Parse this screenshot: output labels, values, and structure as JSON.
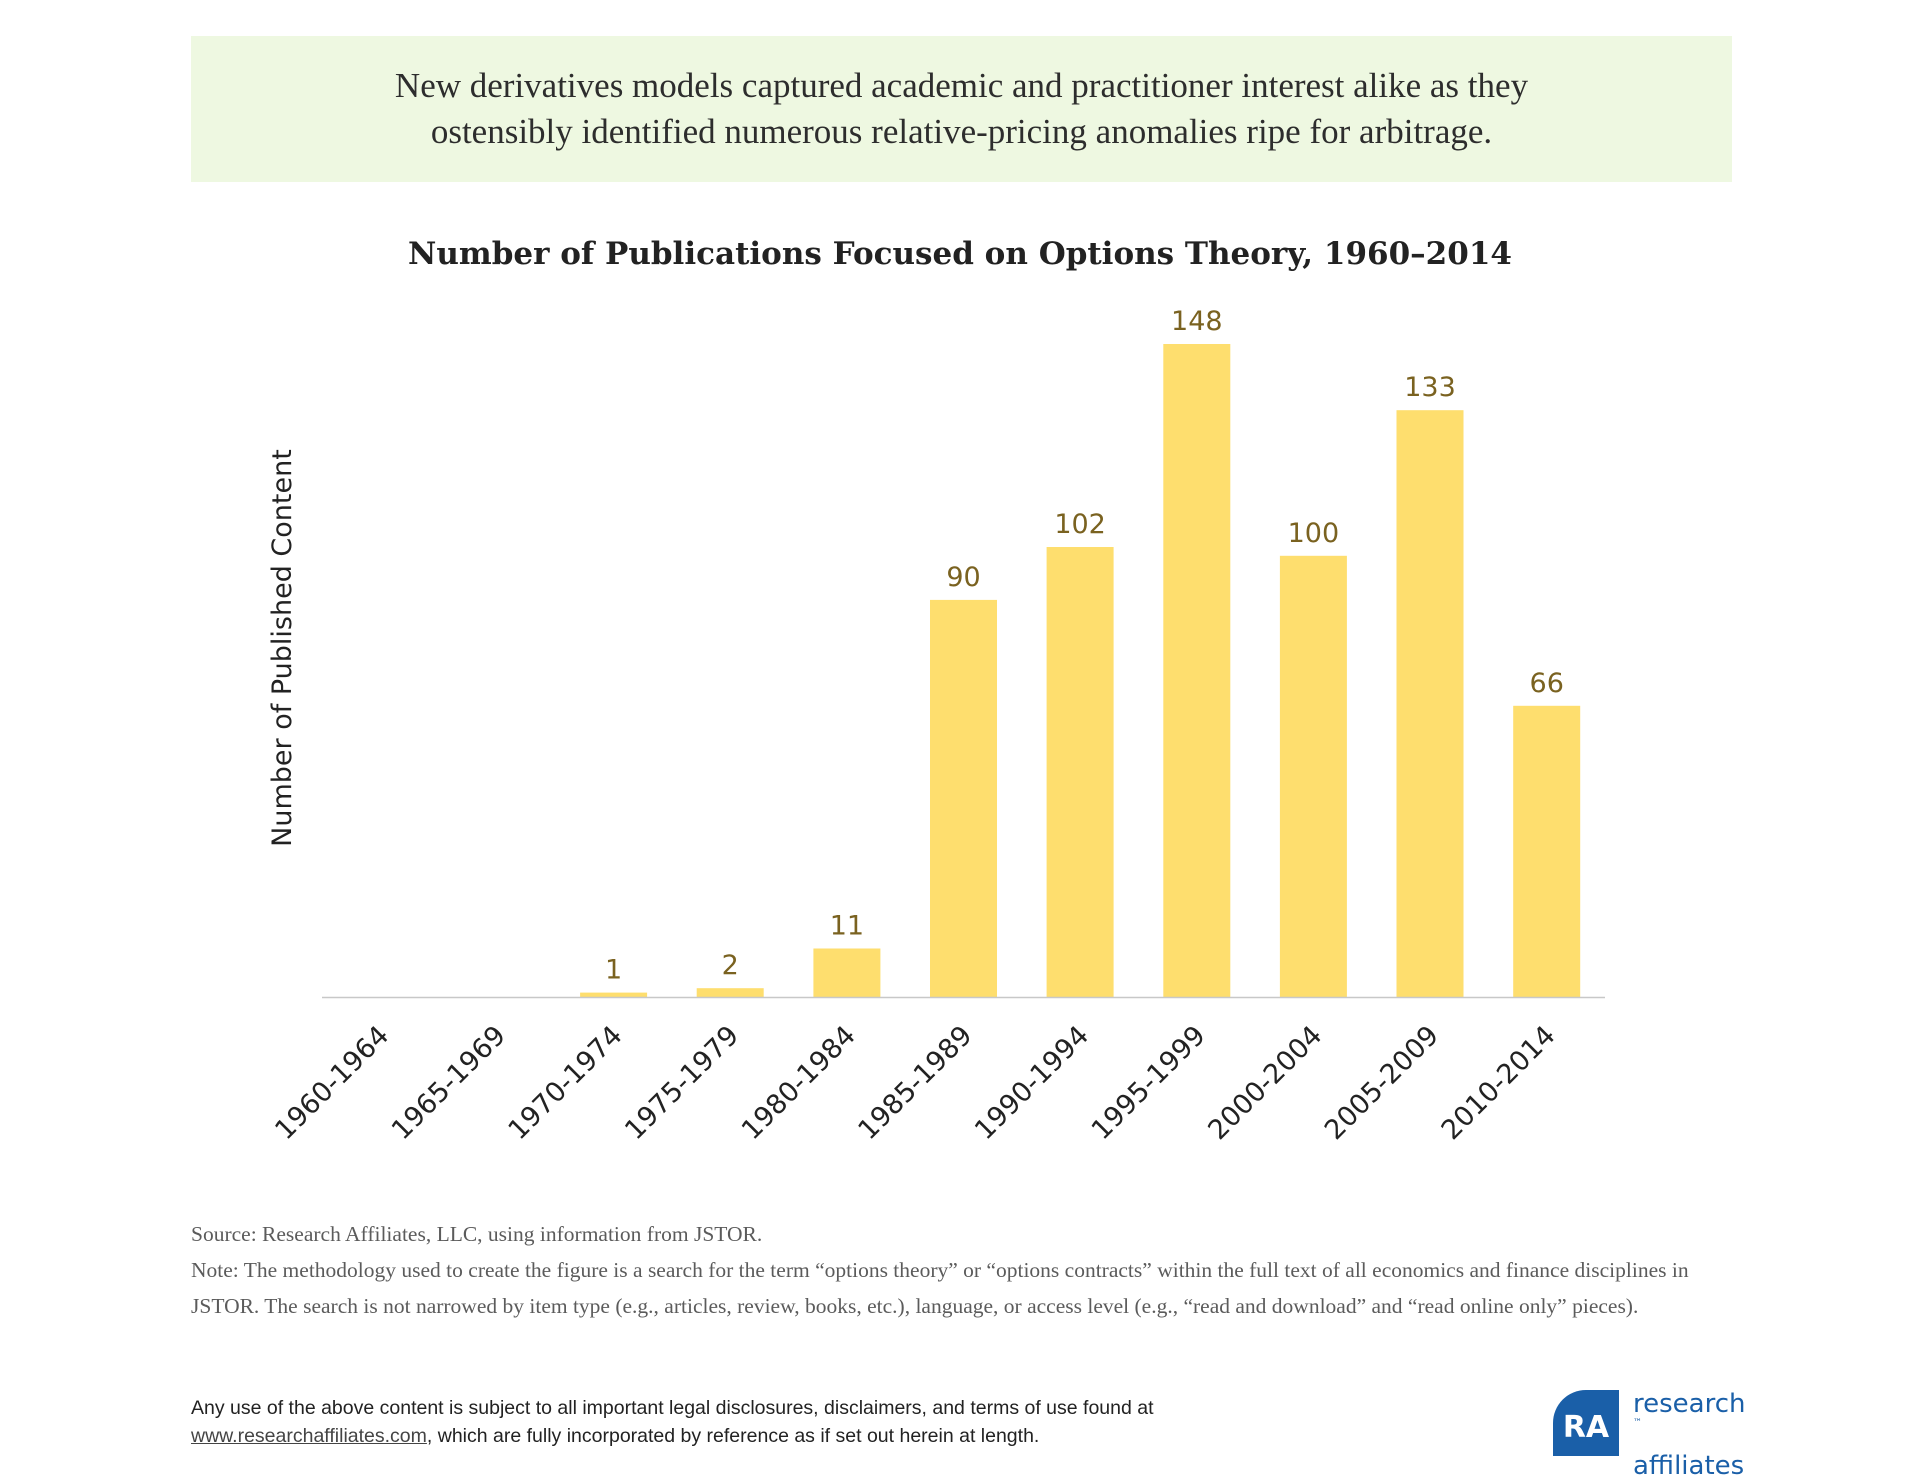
{
  "banner": {
    "line1": "New derivatives models captured academic and practitioner interest alike as they",
    "line2": "ostensibly identified numerous relative-pricing anomalies ripe for arbitrage."
  },
  "chart_data": {
    "type": "bar",
    "title": "Number of Publications Focused on Options Theory, 1960–2014",
    "xlabel": "",
    "ylabel": "Number of Published Content",
    "categories": [
      "1960-1964",
      "1965-1969",
      "1970-1974",
      "1975-1979",
      "1980-1984",
      "1985-1989",
      "1990-1994",
      "1995-1999",
      "2000-2004",
      "2005-2009",
      "2010-2014"
    ],
    "values": [
      0,
      0,
      1,
      2,
      11,
      90,
      102,
      148,
      100,
      133,
      66
    ],
    "labels": [
      "",
      "",
      "1",
      "2",
      "11",
      "90",
      "102",
      "148",
      "100",
      "133",
      "66"
    ],
    "ylim": [
      0,
      148
    ],
    "grid": false,
    "colors": {
      "bar": "#fede6e",
      "label": "#7a6220",
      "axis": "#c8c8c8"
    }
  },
  "footer": {
    "source": "Source: Research Affiliates, LLC, using information from JSTOR.",
    "note": "Note: The methodology used to create the figure is a search for the term “options theory” or “options contracts” within the full text of all economics and finance disciplines in JSTOR. The search is not narrowed by item type (e.g., articles, review, books, etc.), language, or access level (e.g., “read and download” and “read online only” pieces).",
    "legal_line1": "Any use of the above content is subject to all important legal disclosures, disclaimers, and terms of use found at",
    "legal_link": "www.researchaffiliates.com",
    "legal_line2_rest": ", which are fully incorporated by reference as if set out herein at length."
  },
  "logo": {
    "line1": "research",
    "line2": "affiliates",
    "tm": "™",
    "mark": "RA",
    "color": "#1a5fa8"
  }
}
